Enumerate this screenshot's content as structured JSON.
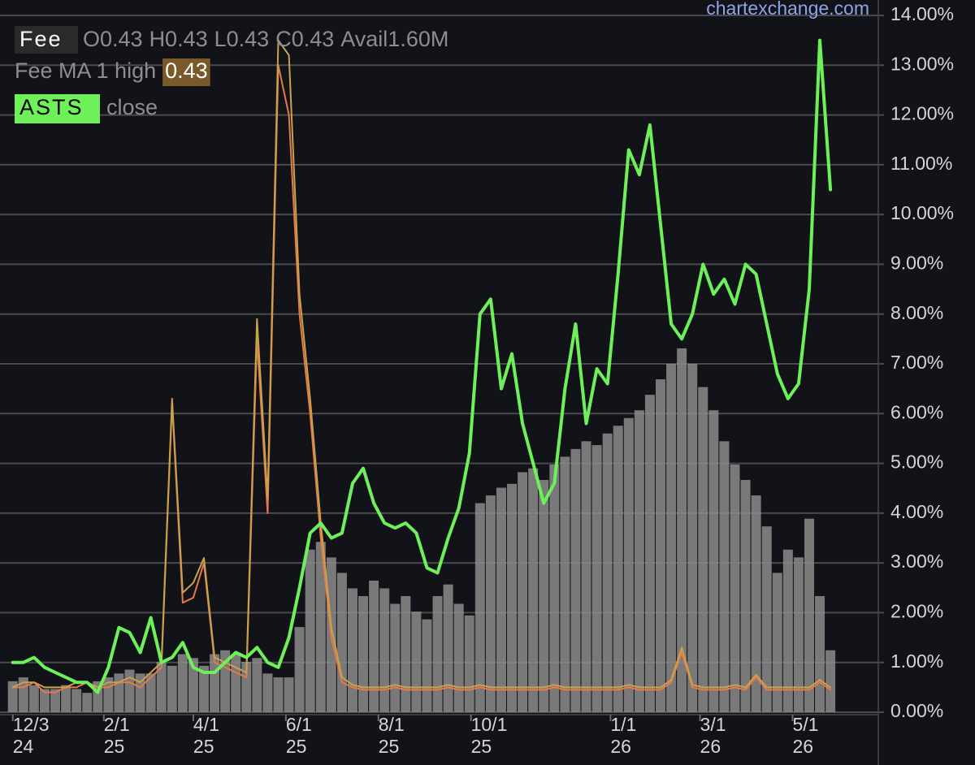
{
  "chart_data": {
    "type": "line",
    "watermark": "chartexchange.com",
    "readout": [
      "O0.43",
      "H0.43",
      "L0.43",
      "C0.43",
      "Avail1.60M"
    ],
    "xlim": [
      "2024-12-01",
      "2026-06-26"
    ],
    "xticks": [
      {
        "value": "2024-12-03",
        "label": "12/3",
        "year": "24"
      },
      {
        "value": "2025-02-01",
        "label": "2/1",
        "year": "25"
      },
      {
        "value": "2025-04-01",
        "label": "4/1",
        "year": "25"
      },
      {
        "value": "2025-06-01",
        "label": "6/1",
        "year": "25"
      },
      {
        "value": "2025-08-01",
        "label": "8/1",
        "year": "25"
      },
      {
        "value": "2025-10-01",
        "label": "10/1",
        "year": "25"
      },
      {
        "value": "2026-01-01",
        "label": "1/1",
        "year": "26"
      },
      {
        "value": "2026-03-01",
        "label": "3/1",
        "year": "26"
      },
      {
        "value": "2026-05-01",
        "label": "5/1",
        "year": "26"
      }
    ],
    "ylim": [
      0,
      14
    ],
    "yticks": [
      {
        "value": 0,
        "label": "0.00%"
      },
      {
        "value": 1,
        "label": "1.00%"
      },
      {
        "value": 2,
        "label": "2.00%"
      },
      {
        "value": 3,
        "label": "3.00%"
      },
      {
        "value": 4,
        "label": "4.00%"
      },
      {
        "value": 5,
        "label": "5.00%"
      },
      {
        "value": 6,
        "label": "6.00%"
      },
      {
        "value": 7,
        "label": "7.00%"
      },
      {
        "value": 8,
        "label": "8.00%"
      },
      {
        "value": 9,
        "label": "9.00%"
      },
      {
        "value": 10,
        "label": "10.00%"
      },
      {
        "value": 11,
        "label": "11.00%"
      },
      {
        "value": 12,
        "label": "12.00%"
      },
      {
        "value": 13,
        "label": "13.00%"
      },
      {
        "value": 14,
        "label": "14.00%"
      }
    ],
    "y2lim": [
      0,
      18
    ],
    "grid": true,
    "x": [
      "2024-12-03",
      "2024-12-10",
      "2024-12-17",
      "2024-12-24",
      "2024-12-31",
      "2025-01-07",
      "2025-01-14",
      "2025-01-21",
      "2025-01-28",
      "2025-02-04",
      "2025-02-11",
      "2025-02-18",
      "2025-02-25",
      "2025-03-04",
      "2025-03-11",
      "2025-03-18",
      "2025-03-25",
      "2025-04-01",
      "2025-04-08",
      "2025-04-15",
      "2025-04-22",
      "2025-04-29",
      "2025-05-06",
      "2025-05-13",
      "2025-05-20",
      "2025-05-27",
      "2025-06-03",
      "2025-06-10",
      "2025-06-17",
      "2025-06-24",
      "2025-07-01",
      "2025-07-08",
      "2025-07-15",
      "2025-07-22",
      "2025-07-29",
      "2025-08-05",
      "2025-08-12",
      "2025-08-19",
      "2025-08-26",
      "2025-09-02",
      "2025-09-09",
      "2025-09-16",
      "2025-09-23",
      "2025-09-30",
      "2025-10-07",
      "2025-10-14",
      "2025-10-21",
      "2025-10-28",
      "2025-11-04",
      "2025-11-11",
      "2025-11-18",
      "2025-11-25",
      "2025-12-02",
      "2025-12-09",
      "2025-12-16",
      "2025-12-23",
      "2025-12-30",
      "2026-01-06",
      "2026-01-13",
      "2026-01-20",
      "2026-01-27",
      "2026-02-03",
      "2026-02-10",
      "2026-02-17",
      "2026-02-24",
      "2026-03-03",
      "2026-03-10",
      "2026-03-17",
      "2026-03-24",
      "2026-03-31",
      "2026-04-07",
      "2026-04-14",
      "2026-04-21",
      "2026-04-28",
      "2026-05-05",
      "2026-05-12",
      "2026-05-19",
      "2026-05-26"
    ],
    "series": [
      {
        "name": "Avail",
        "type": "bar",
        "axis": "y2",
        "color": "#8c8c8c",
        "values": [
          0.8,
          0.9,
          0.7,
          0.6,
          0.6,
          0.7,
          0.6,
          0.5,
          0.8,
          0.9,
          1.0,
          1.1,
          1.0,
          1.0,
          1.3,
          1.2,
          1.5,
          1.4,
          1.2,
          1.5,
          1.6,
          1.5,
          1.3,
          1.4,
          1.0,
          0.9,
          0.9,
          2.2,
          4.2,
          4.4,
          4.0,
          3.6,
          3.2,
          3.0,
          3.4,
          3.2,
          2.8,
          3.0,
          2.6,
          2.4,
          3.0,
          3.3,
          2.8,
          2.5,
          5.4,
          5.6,
          5.8,
          5.9,
          6.2,
          6.3,
          6.0,
          6.4,
          6.6,
          6.8,
          7.0,
          6.9,
          7.2,
          7.4,
          7.6,
          7.8,
          8.2,
          8.6,
          9.0,
          9.4,
          9.0,
          8.4,
          7.8,
          7.0,
          6.4,
          6.0,
          5.6,
          4.8,
          3.6,
          4.2,
          4.0,
          5.0,
          3.0,
          1.6
        ]
      },
      {
        "name": "Fee",
        "color": "#e57a4c",
        "values": [
          0.5,
          0.5,
          0.6,
          0.4,
          0.4,
          0.5,
          0.5,
          0.6,
          0.5,
          0.5,
          0.6,
          0.6,
          0.5,
          0.7,
          0.9,
          6.2,
          2.2,
          2.3,
          3.0,
          1.0,
          0.9,
          0.8,
          0.7,
          7.5,
          4.0,
          13.0,
          12.0,
          8.0,
          6.0,
          3.5,
          1.5,
          0.6,
          0.5,
          0.45,
          0.45,
          0.45,
          0.5,
          0.45,
          0.45,
          0.45,
          0.45,
          0.5,
          0.45,
          0.45,
          0.5,
          0.45,
          0.45,
          0.45,
          0.45,
          0.45,
          0.45,
          0.5,
          0.45,
          0.45,
          0.45,
          0.45,
          0.45,
          0.45,
          0.5,
          0.45,
          0.45,
          0.45,
          0.6,
          1.2,
          0.5,
          0.45,
          0.45,
          0.45,
          0.5,
          0.45,
          0.7,
          0.45,
          0.45,
          0.45,
          0.45,
          0.45,
          0.6,
          0.45
        ]
      },
      {
        "name": "Fee MA 1 high",
        "color": "#c9a24a",
        "readout": "0.43",
        "values": [
          0.5,
          0.6,
          0.6,
          0.5,
          0.5,
          0.5,
          0.6,
          0.6,
          0.5,
          0.6,
          0.6,
          0.7,
          0.6,
          0.8,
          1.0,
          6.3,
          2.4,
          2.6,
          3.1,
          1.1,
          1.0,
          0.9,
          0.8,
          7.9,
          4.3,
          13.5,
          13.2,
          8.4,
          6.3,
          3.8,
          1.7,
          0.7,
          0.55,
          0.5,
          0.5,
          0.5,
          0.55,
          0.5,
          0.5,
          0.5,
          0.5,
          0.55,
          0.5,
          0.5,
          0.55,
          0.5,
          0.5,
          0.5,
          0.5,
          0.5,
          0.5,
          0.55,
          0.5,
          0.5,
          0.5,
          0.5,
          0.5,
          0.5,
          0.55,
          0.5,
          0.5,
          0.5,
          0.65,
          1.3,
          0.55,
          0.5,
          0.5,
          0.5,
          0.55,
          0.5,
          0.75,
          0.5,
          0.5,
          0.5,
          0.5,
          0.5,
          0.65,
          0.5
        ]
      },
      {
        "name": "ASTS",
        "color": "#6ef05a",
        "field": "close",
        "values": [
          1.0,
          1.0,
          1.1,
          0.9,
          0.8,
          0.7,
          0.6,
          0.6,
          0.4,
          0.9,
          1.7,
          1.6,
          1.2,
          1.9,
          1.0,
          1.1,
          1.4,
          0.9,
          0.8,
          0.8,
          1.0,
          1.2,
          1.1,
          1.3,
          1.0,
          0.9,
          1.5,
          2.5,
          3.6,
          3.8,
          3.5,
          3.6,
          4.6,
          4.9,
          4.2,
          3.8,
          3.7,
          3.8,
          3.6,
          2.9,
          2.8,
          3.5,
          4.1,
          5.2,
          8.0,
          8.3,
          6.5,
          7.2,
          5.8,
          5.0,
          4.2,
          4.6,
          6.5,
          7.8,
          5.8,
          6.9,
          6.6,
          8.8,
          11.3,
          10.8,
          11.8,
          9.8,
          7.8,
          7.5,
          8.0,
          9.0,
          8.4,
          8.7,
          8.2,
          9.0,
          8.8,
          7.8,
          6.8,
          6.3,
          6.6,
          8.5,
          13.5,
          10.5
        ]
      }
    ]
  }
}
